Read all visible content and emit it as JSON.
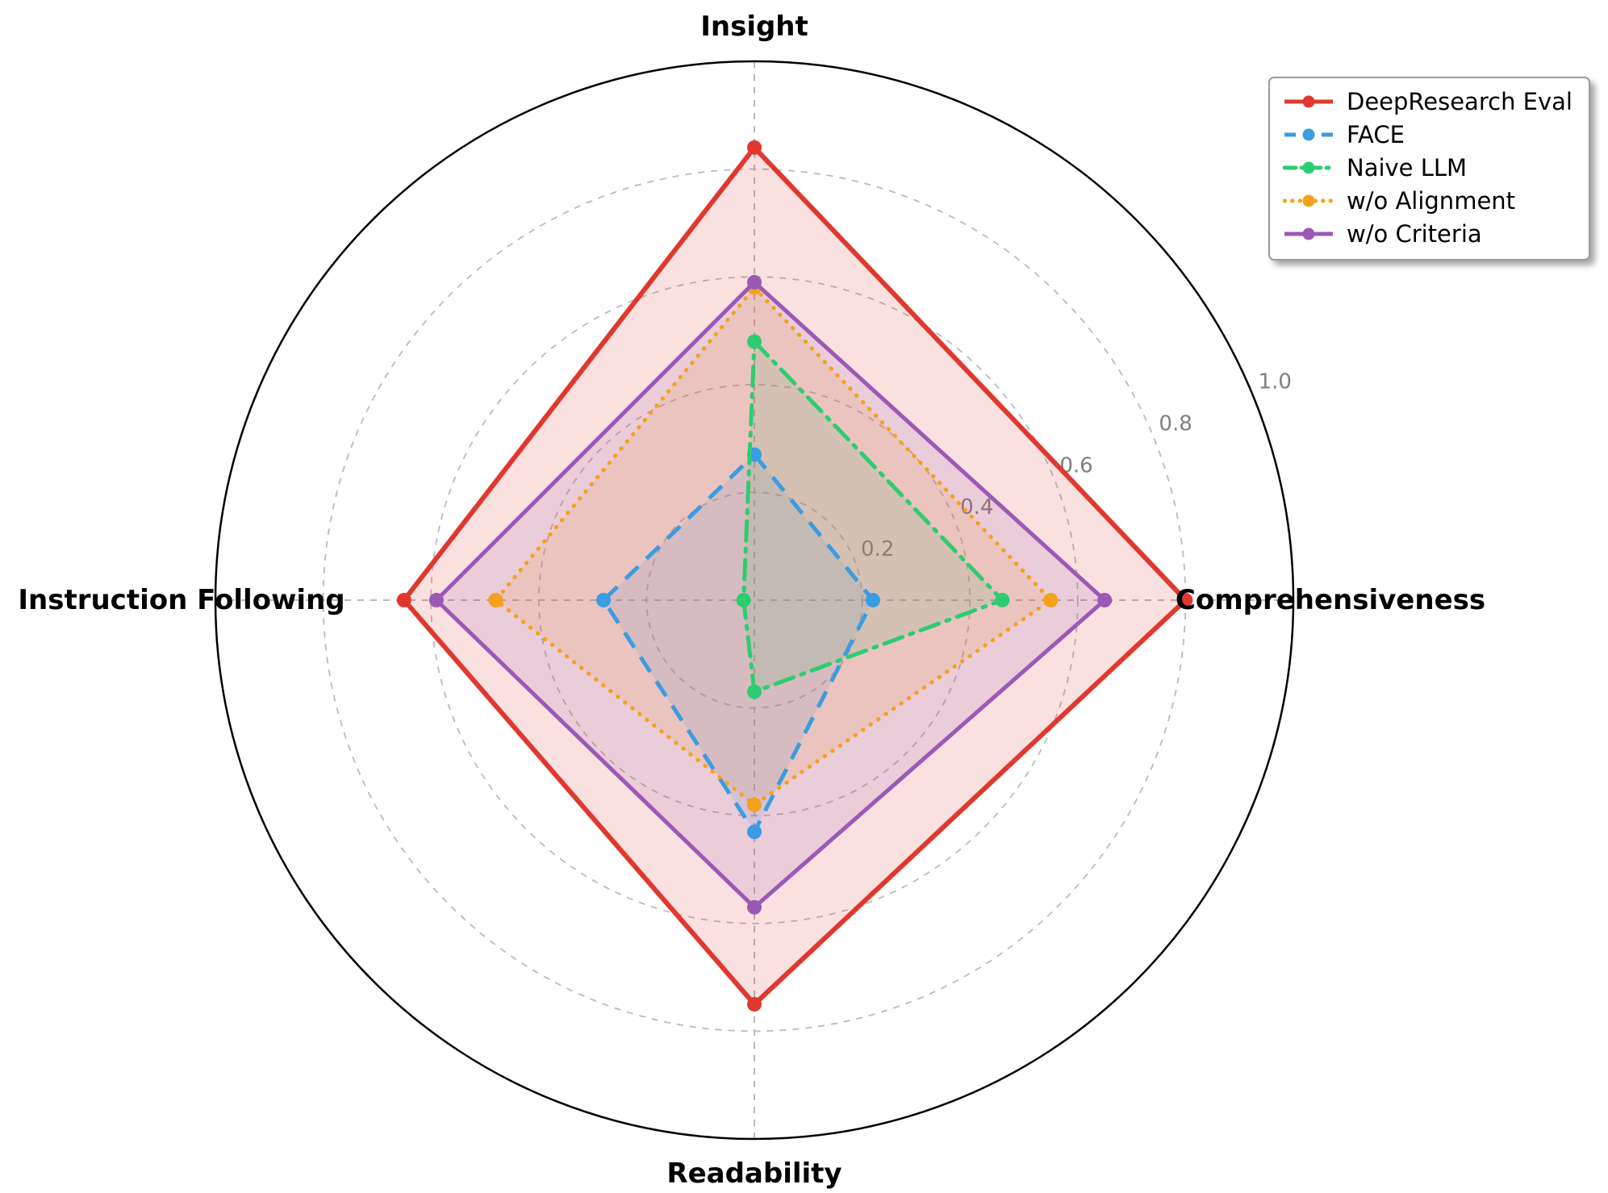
{
  "chart_data": {
    "type": "radar",
    "title": "",
    "categories": [
      "Insight",
      "Comprehensiveness",
      "Readability",
      "Instruction Following"
    ],
    "axis_angles_deg": [
      90,
      0,
      -90,
      180
    ],
    "rlim": [
      0,
      1.0
    ],
    "ticks": [
      0.2,
      0.4,
      0.6,
      0.8,
      1.0
    ],
    "tick_labels": [
      "0.2",
      "0.4",
      "0.6",
      "0.8",
      "1.0"
    ],
    "tick_label_angle_deg": 22.8,
    "grid": "dashed gray circles with solid black outer ring and dashed cross spokes",
    "legend_position": "upper right",
    "series": [
      {
        "name": "DeepResearch Eval",
        "color": "#e0382e",
        "style": "solid",
        "values": [
          0.84,
          0.8,
          0.75,
          0.65
        ]
      },
      {
        "name": "FACE",
        "color": "#3a9ce2",
        "style": "dashed",
        "values": [
          0.27,
          0.22,
          0.43,
          0.28
        ]
      },
      {
        "name": "Naive LLM",
        "color": "#2ecc71",
        "style": "dashdot",
        "values": [
          0.48,
          0.46,
          0.17,
          0.02
        ]
      },
      {
        "name": "w/o Alignment",
        "color": "#f5a11b",
        "style": "dotted",
        "values": [
          0.58,
          0.55,
          0.38,
          0.48
        ]
      },
      {
        "name": "w/o Criteria",
        "color": "#9b59b6",
        "style": "solid",
        "values": [
          0.59,
          0.65,
          0.57,
          0.59
        ]
      }
    ]
  }
}
